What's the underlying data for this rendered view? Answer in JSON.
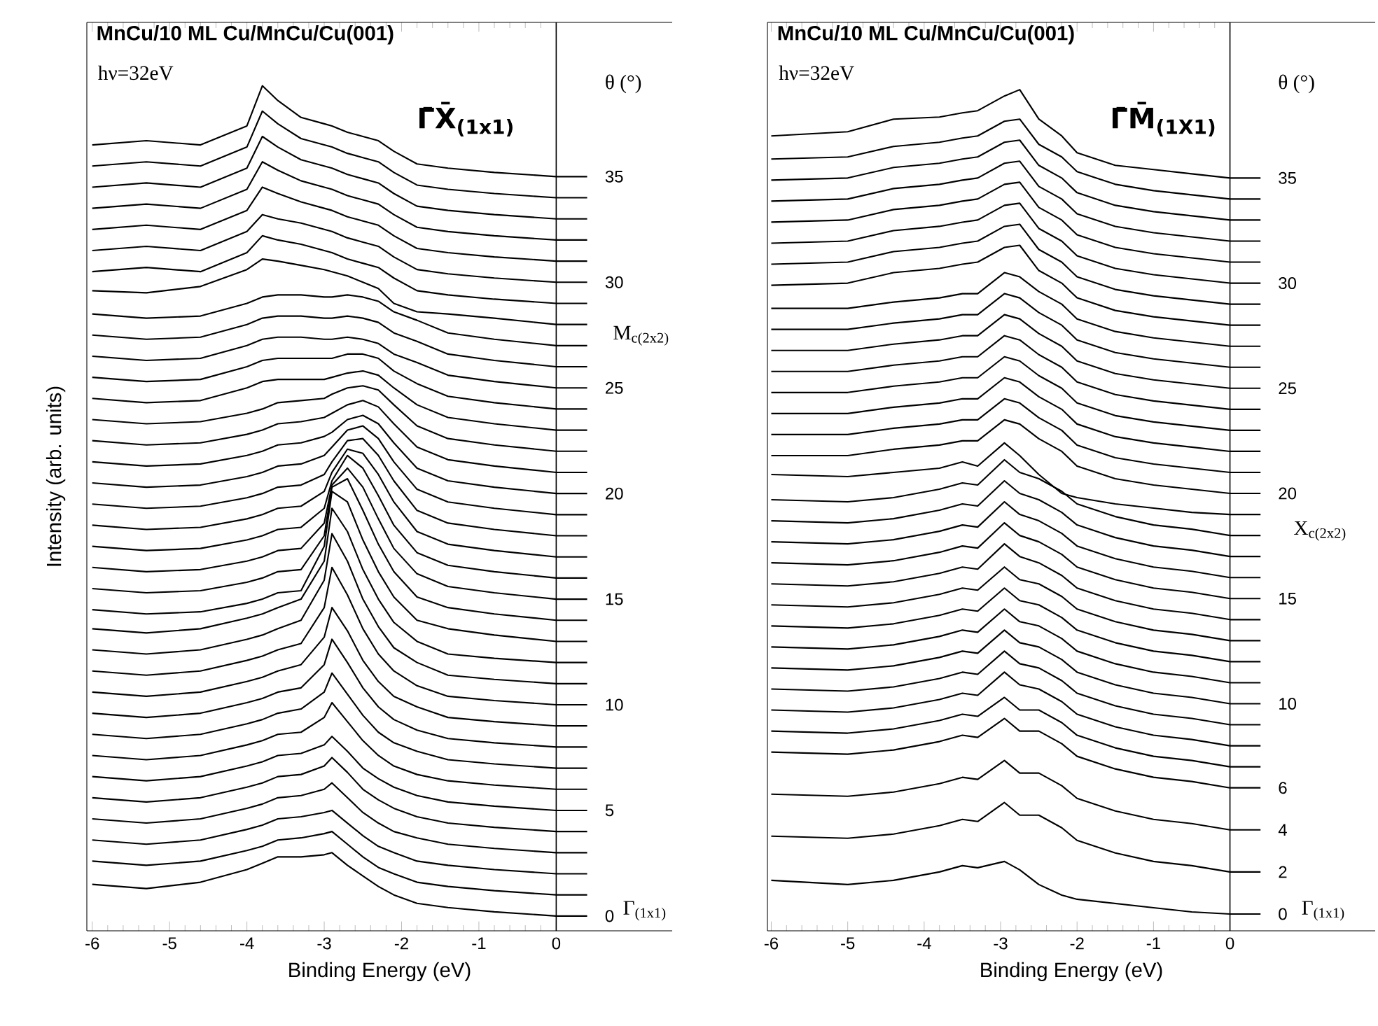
{
  "chart_data": [
    {
      "type": "line",
      "title": "MnCu/10 ML Cu/MnCu/Cu(001)",
      "xlabel": "Binding Energy (eV)",
      "ylabel": "Intensity (arb. units)",
      "y2label": "θ (°)",
      "color": "#000000",
      "annotations": [
        "hν=32eV",
        "Γ̄X̄$_{(1x1)}$",
        "M$_{c(2x2)}$",
        "Γ$_{(1x1)}$"
      ],
      "xlim": [
        -6.07,
        1.5
      ],
      "ylim": [
        -0.7,
        42.3
      ],
      "xticks": [
        -6,
        -5,
        -4,
        -3,
        -2,
        -1,
        0
      ],
      "yticks": [
        0,
        5,
        10,
        15,
        20,
        25,
        30,
        35
      ],
      "ref_lines": [
        {
          "axis": "x",
          "value": 0
        }
      ],
      "x": [
        -6,
        -5.3,
        -4.6,
        -4,
        -3.8,
        -3.6,
        -3.3,
        -3,
        -2.9,
        -2.7,
        -2.5,
        -2.3,
        -2.1,
        -1.8,
        -1.4,
        -0.8,
        0,
        0.4
      ],
      "series": [
        {
          "values": [
            1.5,
            1.3,
            1.6,
            2.2,
            2.5,
            2.8,
            2.8,
            2.9,
            3.0,
            2.4,
            1.9,
            1.4,
            1.0,
            0.6,
            0.4,
            0.2,
            0,
            0
          ]
        },
        {
          "values": [
            2.6,
            2.4,
            2.6,
            3.1,
            3.3,
            3.6,
            3.7,
            3.9,
            4.0,
            3.4,
            2.8,
            2.3,
            2.0,
            1.6,
            1.4,
            1.2,
            1,
            1
          ]
        },
        {
          "values": [
            3.6,
            3.4,
            3.6,
            4.1,
            4.3,
            4.6,
            4.7,
            4.9,
            5.0,
            4.4,
            3.8,
            3.3,
            3.0,
            2.6,
            2.4,
            2.2,
            2,
            2
          ]
        },
        {
          "values": [
            4.6,
            4.4,
            4.6,
            5.1,
            5.3,
            5.6,
            5.7,
            6.0,
            6.3,
            5.6,
            4.9,
            4.4,
            4.0,
            3.7,
            3.4,
            3.2,
            3,
            3
          ]
        },
        {
          "values": [
            5.6,
            5.4,
            5.6,
            6.1,
            6.3,
            6.6,
            6.7,
            7.1,
            7.5,
            6.8,
            6.0,
            5.5,
            5.1,
            4.7,
            4.4,
            4.2,
            4,
            4
          ]
        },
        {
          "values": [
            6.6,
            6.4,
            6.6,
            7.1,
            7.3,
            7.6,
            7.7,
            8.1,
            8.5,
            7.8,
            7.0,
            6.5,
            6.1,
            5.7,
            5.4,
            5.2,
            5,
            5
          ]
        },
        {
          "values": [
            7.6,
            7.4,
            7.6,
            8.1,
            8.3,
            8.6,
            8.7,
            9.4,
            10.1,
            9.2,
            8.3,
            7.6,
            7.1,
            6.7,
            6.4,
            6.2,
            6,
            6
          ]
        },
        {
          "values": [
            8.6,
            8.4,
            8.6,
            9.1,
            9.3,
            9.6,
            9.8,
            10.6,
            11.5,
            10.5,
            9.5,
            8.7,
            8.2,
            7.8,
            7.4,
            7.2,
            7,
            7
          ]
        },
        {
          "values": [
            9.6,
            9.4,
            9.6,
            10.1,
            10.3,
            10.6,
            10.8,
            11.9,
            13.1,
            12.0,
            10.8,
            9.9,
            9.3,
            8.8,
            8.4,
            8.2,
            8,
            8
          ]
        },
        {
          "values": [
            10.6,
            10.4,
            10.6,
            11.1,
            11.3,
            11.6,
            11.9,
            13.2,
            14.6,
            13.5,
            12.1,
            11.1,
            10.4,
            9.9,
            9.4,
            9.2,
            9,
            9
          ]
        },
        {
          "values": [
            11.6,
            11.4,
            11.6,
            12.1,
            12.3,
            12.6,
            12.9,
            14.6,
            16.5,
            15.2,
            13.6,
            12.4,
            11.6,
            10.9,
            10.4,
            10.2,
            10,
            10
          ]
        },
        {
          "values": [
            12.6,
            12.4,
            12.6,
            13.1,
            13.3,
            13.6,
            14.0,
            15.9,
            18.1,
            16.8,
            15.0,
            13.7,
            12.7,
            12.0,
            11.4,
            11.2,
            11,
            11
          ]
        },
        {
          "values": [
            13.6,
            13.4,
            13.6,
            14.1,
            14.3,
            14.6,
            15.0,
            16.8,
            19.3,
            18.2,
            16.4,
            15.0,
            13.9,
            13.0,
            12.4,
            12.2,
            12,
            12
          ]
        },
        {
          "values": [
            14.5,
            14.3,
            14.4,
            14.8,
            15.0,
            15.3,
            15.4,
            17.5,
            20.1,
            19.6,
            17.8,
            16.3,
            15.1,
            14.0,
            13.6,
            13.3,
            13,
            13
          ]
        },
        {
          "values": [
            15.5,
            15.3,
            15.4,
            15.8,
            16.0,
            16.3,
            16.4,
            18.0,
            20.3,
            20.7,
            19.2,
            17.6,
            16.3,
            15.1,
            14.6,
            14.3,
            14,
            14
          ]
        },
        {
          "values": [
            16.5,
            16.3,
            16.4,
            16.8,
            17.0,
            17.3,
            17.4,
            18.6,
            20.4,
            21.2,
            20.3,
            18.8,
            17.4,
            16.2,
            15.6,
            15.3,
            15,
            15
          ]
        },
        {
          "values": [
            17.5,
            17.3,
            17.4,
            17.8,
            18.0,
            18.3,
            18.4,
            19.3,
            20.6,
            21.8,
            21.2,
            19.9,
            18.5,
            17.2,
            16.6,
            16.3,
            16,
            16
          ]
        },
        {
          "values": [
            18.5,
            18.3,
            18.4,
            18.8,
            19.0,
            19.3,
            19.4,
            20.1,
            21.0,
            22.1,
            21.9,
            20.9,
            19.6,
            18.2,
            17.6,
            17.3,
            17,
            17
          ]
        },
        {
          "values": [
            19.5,
            19.3,
            19.4,
            19.8,
            20.0,
            20.3,
            20.4,
            20.9,
            21.5,
            22.5,
            22.6,
            21.8,
            20.6,
            19.2,
            18.6,
            18.3,
            18,
            18
          ]
        },
        {
          "values": [
            20.5,
            20.3,
            20.4,
            20.8,
            21.0,
            21.3,
            21.4,
            21.8,
            22.2,
            23.0,
            23.2,
            22.6,
            21.5,
            20.2,
            19.6,
            19.3,
            19,
            19
          ]
        },
        {
          "values": [
            21.5,
            21.3,
            21.4,
            21.8,
            22.0,
            22.3,
            22.4,
            22.7,
            22.9,
            23.5,
            23.7,
            23.3,
            22.4,
            21.2,
            20.6,
            20.3,
            20,
            20
          ]
        },
        {
          "values": [
            22.5,
            22.3,
            22.4,
            22.8,
            23.0,
            23.3,
            23.4,
            23.6,
            23.8,
            24.2,
            24.4,
            24.1,
            23.3,
            22.2,
            21.6,
            21.3,
            21,
            21
          ]
        },
        {
          "values": [
            23.5,
            23.3,
            23.4,
            23.8,
            24.0,
            24.3,
            24.4,
            24.5,
            24.7,
            25.0,
            25.1,
            24.9,
            24.2,
            23.2,
            22.6,
            22.3,
            22,
            22
          ]
        },
        {
          "values": [
            24.5,
            24.3,
            24.4,
            25.0,
            25.3,
            25.4,
            25.4,
            25.4,
            25.5,
            25.7,
            25.8,
            25.6,
            25.0,
            24.2,
            23.6,
            23.3,
            23,
            23
          ]
        },
        {
          "values": [
            25.5,
            25.3,
            25.4,
            26.0,
            26.3,
            26.4,
            26.4,
            26.4,
            26.4,
            26.6,
            26.6,
            26.4,
            25.8,
            25.2,
            24.6,
            24.3,
            24,
            24
          ]
        },
        {
          "values": [
            26.5,
            26.3,
            26.4,
            27.0,
            27.3,
            27.4,
            27.4,
            27.3,
            27.3,
            27.4,
            27.3,
            27.1,
            26.6,
            26.2,
            25.6,
            25.3,
            25,
            25
          ]
        },
        {
          "values": [
            27.5,
            27.3,
            27.4,
            28.0,
            28.3,
            28.4,
            28.4,
            28.3,
            28.3,
            28.4,
            28.3,
            28.1,
            27.6,
            27.2,
            26.6,
            26.3,
            26,
            26
          ]
        },
        {
          "values": [
            28.5,
            28.3,
            28.4,
            29.0,
            29.3,
            29.4,
            29.4,
            29.3,
            29.3,
            29.4,
            29.3,
            29.1,
            28.6,
            28.2,
            27.6,
            27.3,
            27,
            27
          ]
        },
        {
          "values": [
            29.6,
            29.5,
            29.8,
            30.6,
            31.1,
            31.0,
            30.8,
            30.6,
            30.5,
            30.3,
            30.0,
            29.7,
            29.0,
            28.6,
            28.5,
            28.3,
            28,
            28
          ]
        },
        {
          "values": [
            30.5,
            30.7,
            30.5,
            31.4,
            32.2,
            32.0,
            31.8,
            31.5,
            31.4,
            31.1,
            30.9,
            30.7,
            30.2,
            29.6,
            29.4,
            29.2,
            29,
            29
          ]
        },
        {
          "values": [
            31.5,
            31.7,
            31.5,
            32.4,
            33.2,
            33.0,
            32.8,
            32.5,
            32.4,
            32.1,
            31.9,
            31.7,
            31.2,
            30.6,
            30.4,
            30.2,
            30,
            30
          ]
        },
        {
          "values": [
            32.5,
            32.7,
            32.5,
            33.4,
            34.5,
            34.2,
            33.8,
            33.5,
            33.4,
            33.1,
            32.9,
            32.7,
            32.2,
            31.6,
            31.4,
            31.2,
            31,
            31
          ]
        },
        {
          "values": [
            33.5,
            33.7,
            33.5,
            34.4,
            35.7,
            35.3,
            34.8,
            34.5,
            34.4,
            34.1,
            33.9,
            33.7,
            33.2,
            32.6,
            32.4,
            32.2,
            32,
            32
          ]
        },
        {
          "values": [
            34.5,
            34.7,
            34.5,
            35.4,
            36.9,
            36.4,
            35.8,
            35.5,
            35.4,
            35.1,
            34.9,
            34.7,
            34.2,
            33.6,
            33.4,
            33.2,
            33,
            33
          ]
        },
        {
          "values": [
            35.5,
            35.7,
            35.5,
            36.4,
            38.1,
            37.5,
            36.8,
            36.5,
            36.4,
            36.1,
            35.9,
            35.7,
            35.2,
            34.6,
            34.4,
            34.2,
            34,
            34
          ]
        },
        {
          "values": [
            36.5,
            36.7,
            36.5,
            37.4,
            39.3,
            38.6,
            37.8,
            37.5,
            37.4,
            37.1,
            36.9,
            36.7,
            36.2,
            35.6,
            35.4,
            35.2,
            35,
            35
          ]
        }
      ]
    },
    {
      "type": "line",
      "title": "MnCu/10 ML Cu/MnCu/Cu(001)",
      "xlabel": "Binding Energy (eV)",
      "y2label": "θ (°)",
      "color": "#000000",
      "annotations": [
        "hν=32eV",
        "Γ̄M̄$_{(1X1)}$",
        "X$_{c(2x2)}$",
        "Γ$_{(1x1)}$"
      ],
      "xlim": [
        -6.05,
        1.9
      ],
      "ylim": [
        -0.8,
        42.4
      ],
      "xticks": [
        -6,
        -5,
        -4,
        -3,
        -2,
        -1,
        0
      ],
      "yticks": [
        0,
        2,
        4,
        6,
        10,
        15,
        20,
        25,
        30,
        35
      ],
      "ref_lines": [
        {
          "axis": "x",
          "value": 0
        }
      ],
      "x": [
        -6,
        -5,
        -4.4,
        -3.8,
        -3.5,
        -3.3,
        -2.95,
        -2.75,
        -2.5,
        -2.2,
        -2,
        -1.5,
        -1,
        -0.5,
        0,
        0.4
      ],
      "series": [
        {
          "values": [
            1.6,
            1.4,
            1.6,
            2.0,
            2.3,
            2.2,
            2.5,
            2.1,
            1.4,
            0.9,
            0.7,
            0.5,
            0.3,
            0.1,
            0,
            0
          ]
        },
        {
          "values": [
            3.7,
            3.6,
            3.8,
            4.2,
            4.5,
            4.4,
            5.3,
            4.7,
            4.7,
            4.1,
            3.5,
            2.9,
            2.5,
            2.3,
            2,
            2
          ]
        },
        {
          "values": [
            5.7,
            5.6,
            5.8,
            6.2,
            6.5,
            6.4,
            7.3,
            6.7,
            6.7,
            6.1,
            5.5,
            4.9,
            4.5,
            4.3,
            4,
            4
          ]
        },
        {
          "values": [
            7.7,
            7.6,
            7.8,
            8.2,
            8.5,
            8.4,
            9.3,
            8.7,
            8.7,
            8.1,
            7.5,
            6.9,
            6.5,
            6.3,
            6,
            6
          ]
        },
        {
          "values": [
            8.7,
            8.6,
            8.8,
            9.2,
            9.5,
            9.4,
            10.3,
            9.7,
            9.7,
            9.1,
            8.5,
            7.9,
            7.5,
            7.3,
            7,
            7
          ]
        },
        {
          "values": [
            9.7,
            9.6,
            9.8,
            10.2,
            10.5,
            10.4,
            11.5,
            10.9,
            10.7,
            10.1,
            9.5,
            8.9,
            8.5,
            8.3,
            8,
            8
          ]
        },
        {
          "values": [
            10.7,
            10.6,
            10.8,
            11.2,
            11.5,
            11.4,
            12.5,
            11.9,
            11.7,
            11.1,
            10.5,
            9.9,
            9.5,
            9.3,
            9,
            9
          ]
        },
        {
          "values": [
            11.7,
            11.6,
            11.8,
            12.2,
            12.5,
            12.4,
            13.5,
            12.9,
            12.7,
            12.1,
            11.5,
            10.9,
            10.5,
            10.3,
            10,
            10
          ]
        },
        {
          "values": [
            12.7,
            12.6,
            12.8,
            13.2,
            13.5,
            13.4,
            14.5,
            13.9,
            13.7,
            13.1,
            12.5,
            11.9,
            11.5,
            11.3,
            11,
            11
          ]
        },
        {
          "values": [
            13.7,
            13.6,
            13.8,
            14.2,
            14.5,
            14.4,
            15.5,
            14.9,
            14.7,
            14.1,
            13.5,
            12.9,
            12.5,
            12.3,
            12,
            12
          ]
        },
        {
          "values": [
            14.7,
            14.6,
            14.8,
            15.2,
            15.5,
            15.4,
            16.5,
            15.9,
            15.7,
            15.1,
            14.5,
            13.9,
            13.5,
            13.3,
            13,
            13
          ]
        },
        {
          "values": [
            15.7,
            15.6,
            15.8,
            16.2,
            16.5,
            16.4,
            17.6,
            17.0,
            16.7,
            16.1,
            15.5,
            14.9,
            14.5,
            14.3,
            14,
            14
          ]
        },
        {
          "values": [
            16.7,
            16.6,
            16.8,
            17.2,
            17.5,
            17.4,
            18.6,
            18.0,
            17.7,
            17.1,
            16.5,
            15.9,
            15.5,
            15.3,
            15,
            15
          ]
        },
        {
          "values": [
            17.7,
            17.6,
            17.8,
            18.2,
            18.5,
            18.4,
            19.6,
            19.0,
            18.7,
            18.1,
            17.5,
            16.9,
            16.5,
            16.3,
            16,
            16
          ]
        },
        {
          "values": [
            18.7,
            18.6,
            18.8,
            19.2,
            19.5,
            19.4,
            20.6,
            20.0,
            19.7,
            19.1,
            18.5,
            17.9,
            17.5,
            17.3,
            17,
            17
          ]
        },
        {
          "values": [
            19.7,
            19.6,
            19.8,
            20.2,
            20.5,
            20.4,
            21.6,
            21.0,
            20.7,
            20.1,
            19.5,
            18.9,
            18.5,
            18.3,
            18,
            18
          ]
        },
        {
          "values": [
            20.9,
            20.8,
            21.0,
            21.2,
            21.5,
            21.3,
            22.4,
            21.8,
            20.9,
            20.0,
            19.8,
            19.5,
            19.3,
            19.1,
            19,
            19
          ]
        },
        {
          "values": [
            21.8,
            21.8,
            22.1,
            22.3,
            22.5,
            22.5,
            23.5,
            23.3,
            22.6,
            22.0,
            21.3,
            20.7,
            20.4,
            20.2,
            20,
            20
          ]
        },
        {
          "values": [
            22.8,
            22.8,
            23.1,
            23.3,
            23.5,
            23.5,
            24.5,
            24.3,
            23.6,
            23.0,
            22.3,
            21.7,
            21.4,
            21.2,
            21,
            21
          ]
        },
        {
          "values": [
            23.8,
            23.8,
            24.1,
            24.3,
            24.5,
            24.5,
            25.5,
            25.3,
            24.6,
            24.0,
            23.3,
            22.7,
            22.4,
            22.2,
            22,
            22
          ]
        },
        {
          "values": [
            24.8,
            24.8,
            25.1,
            25.3,
            25.5,
            25.5,
            26.5,
            26.3,
            25.6,
            25.0,
            24.3,
            23.7,
            23.4,
            23.2,
            23,
            23
          ]
        },
        {
          "values": [
            25.8,
            25.8,
            26.1,
            26.3,
            26.5,
            26.5,
            27.5,
            27.3,
            26.6,
            26.0,
            25.3,
            24.7,
            24.4,
            24.2,
            24,
            24
          ]
        },
        {
          "values": [
            26.8,
            26.8,
            27.1,
            27.3,
            27.5,
            27.5,
            28.5,
            28.3,
            27.6,
            27.0,
            26.3,
            25.7,
            25.4,
            25.2,
            25,
            25
          ]
        },
        {
          "values": [
            27.8,
            27.8,
            28.1,
            28.3,
            28.5,
            28.5,
            29.5,
            29.3,
            28.6,
            28.0,
            27.3,
            26.7,
            26.4,
            26.2,
            26,
            26
          ]
        },
        {
          "values": [
            28.8,
            28.8,
            29.1,
            29.3,
            29.5,
            29.5,
            30.5,
            30.3,
            29.6,
            29.0,
            28.3,
            27.7,
            27.4,
            27.2,
            27,
            27
          ]
        },
        {
          "values": [
            29.9,
            30.0,
            30.5,
            30.7,
            30.9,
            31.0,
            31.7,
            31.8,
            30.6,
            30.0,
            29.3,
            28.7,
            28.4,
            28.2,
            28,
            28
          ]
        },
        {
          "values": [
            30.9,
            31.0,
            31.5,
            31.7,
            31.9,
            32.0,
            32.7,
            32.8,
            31.6,
            31.0,
            30.3,
            29.7,
            29.4,
            29.2,
            29,
            29
          ]
        },
        {
          "values": [
            31.9,
            32.0,
            32.5,
            32.7,
            32.9,
            33.0,
            33.7,
            33.8,
            32.6,
            32.0,
            31.3,
            30.7,
            30.4,
            30.2,
            30,
            30
          ]
        },
        {
          "values": [
            32.9,
            33.0,
            33.5,
            33.7,
            33.9,
            34.0,
            34.7,
            34.8,
            33.6,
            33.0,
            32.3,
            31.7,
            31.4,
            31.2,
            31,
            31
          ]
        },
        {
          "values": [
            33.9,
            34.0,
            34.5,
            34.7,
            34.9,
            35.0,
            35.7,
            35.8,
            34.6,
            34.0,
            33.3,
            32.7,
            32.4,
            32.2,
            32,
            32
          ]
        },
        {
          "values": [
            34.9,
            35.0,
            35.5,
            35.7,
            35.9,
            36.0,
            36.7,
            36.8,
            35.6,
            35.0,
            34.3,
            33.7,
            33.4,
            33.2,
            33,
            33
          ]
        },
        {
          "values": [
            35.9,
            36.0,
            36.5,
            36.7,
            36.9,
            37.0,
            37.7,
            37.8,
            36.6,
            36.0,
            35.3,
            34.7,
            34.4,
            34.2,
            34,
            34
          ]
        },
        {
          "values": [
            37.0,
            37.2,
            37.8,
            37.9,
            38.1,
            38.2,
            38.9,
            39.2,
            37.8,
            37.0,
            36.2,
            35.6,
            35.4,
            35.2,
            35,
            35
          ]
        }
      ]
    }
  ]
}
